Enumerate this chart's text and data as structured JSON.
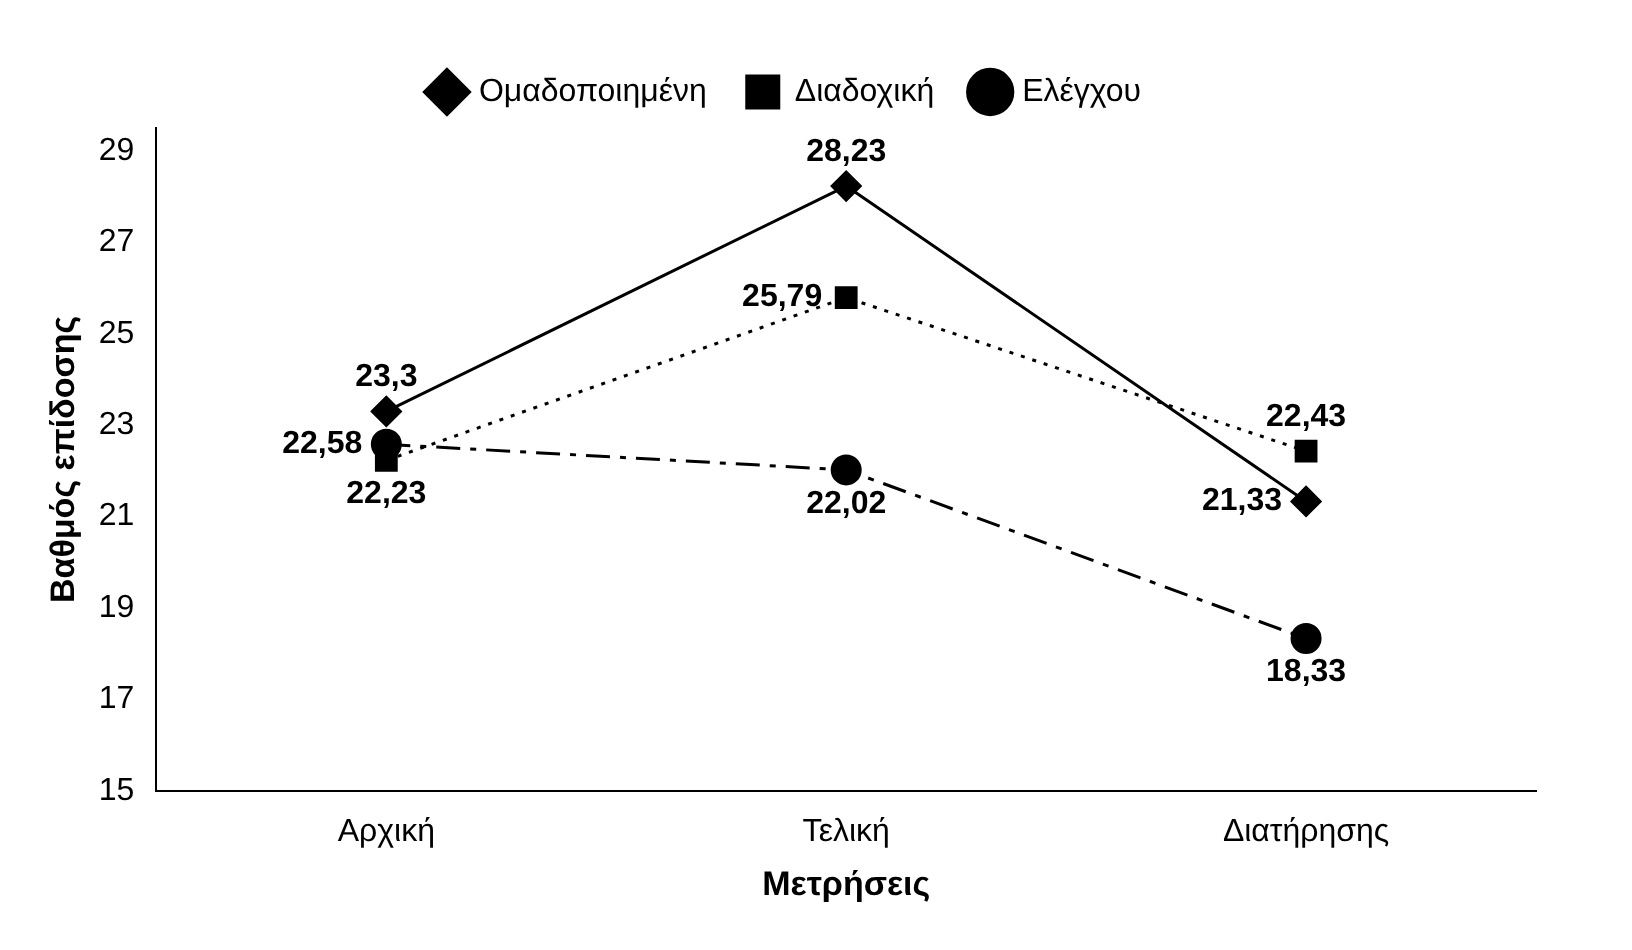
{
  "chart_data": {
    "type": "line",
    "xlabel": "Μετρήσεις",
    "ylabel": "Βαθμός επίδοσης",
    "categories": [
      "Αρχική",
      "Τελική",
      "Διατήρησης"
    ],
    "series": [
      {
        "name": "Ομαδοποιημένη",
        "color": "#000000",
        "values": [
          23.3,
          28.23,
          21.33
        ],
        "value_labels": [
          "23,3",
          "28,23",
          "21,33"
        ],
        "marker": "diamond",
        "line_style": "solid"
      },
      {
        "name": "Διαδοχική",
        "color": "#000000",
        "values": [
          22.23,
          25.79,
          22.43
        ],
        "value_labels": [
          "22,23",
          "25,79",
          "22,43"
        ],
        "marker": "square",
        "line_style": "dotted"
      },
      {
        "name": "Ελέγχου",
        "color": "#000000",
        "values": [
          22.58,
          22.02,
          18.33
        ],
        "value_labels": [
          "22,58",
          "22,02",
          "18,33"
        ],
        "marker": "circle",
        "line_style": "dashed"
      }
    ],
    "ylim": [
      15,
      29.5
    ],
    "yticks": [
      15,
      17,
      19,
      21,
      23,
      25,
      27,
      29
    ],
    "grid": false,
    "legend": "top"
  }
}
